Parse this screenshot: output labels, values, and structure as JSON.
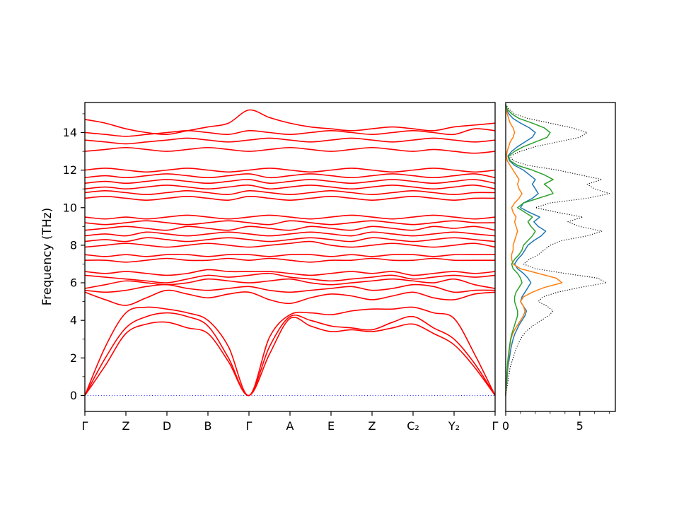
{
  "figure": {
    "background": "#ffffff"
  },
  "chart_data": {
    "type": "line",
    "title": "",
    "panels": [
      {
        "name": "band-structure",
        "ylabel": "Frequency (THz)",
        "ylim": [
          -0.85,
          15.6
        ],
        "yticks": [
          0,
          2,
          4,
          6,
          8,
          10,
          12,
          14
        ],
        "yminor": [
          1,
          3,
          5,
          7,
          9,
          11,
          13,
          15
        ],
        "kpath_labels": [
          "Γ",
          "Z",
          "D",
          "B",
          "Γ",
          "A",
          "E",
          "Z",
          "C₂",
          "Y₂",
          "Γ"
        ],
        "segments": 10,
        "line_color": "#ff0000",
        "zero_line_color": "#0000ff",
        "grid": false,
        "bands": [
          [
            0,
            1.6,
            3.3,
            3.8,
            3.9,
            3.6,
            3.3,
            1.8,
            0,
            2.2,
            4.1,
            3.7,
            3.4,
            3.5,
            3.4,
            3.6,
            3.8,
            3.3,
            2.7,
            1.5,
            0
          ],
          [
            0,
            2.0,
            3.6,
            4.2,
            4.4,
            4.2,
            3.7,
            2.0,
            0,
            2.6,
            4.2,
            4.0,
            3.7,
            3.6,
            3.5,
            3.9,
            4.2,
            3.6,
            3.0,
            1.7,
            0
          ],
          [
            0,
            2.6,
            4.4,
            4.7,
            4.6,
            4.4,
            4.0,
            2.6,
            0,
            3.1,
            4.3,
            4.4,
            4.3,
            4.5,
            4.6,
            4.6,
            4.7,
            4.4,
            4.1,
            2.2,
            0
          ],
          [
            5.5,
            5.1,
            4.8,
            5.2,
            5.6,
            5.4,
            5.2,
            5.4,
            5.5,
            5.1,
            4.9,
            5.2,
            5.4,
            5.3,
            5.1,
            5.3,
            5.5,
            5.2,
            5.1,
            5.4,
            5.5
          ],
          [
            5.6,
            5.5,
            5.6,
            5.8,
            5.9,
            5.7,
            5.6,
            5.7,
            5.8,
            5.6,
            5.5,
            5.6,
            5.7,
            5.8,
            5.6,
            5.7,
            5.9,
            5.8,
            5.5,
            5.6,
            5.6
          ],
          [
            5.7,
            5.9,
            6.1,
            6.0,
            5.9,
            6.0,
            6.2,
            6.1,
            6.0,
            6.1,
            6.2,
            6.0,
            5.9,
            6.0,
            6.1,
            6.2,
            6.1,
            6.0,
            6.2,
            5.9,
            5.7
          ],
          [
            6.4,
            6.3,
            6.2,
            6.1,
            6.0,
            6.2,
            6.4,
            6.3,
            6.4,
            6.5,
            6.3,
            6.2,
            6.1,
            6.2,
            6.3,
            6.4,
            6.2,
            6.3,
            6.4,
            6.3,
            6.4
          ],
          [
            6.6,
            6.5,
            6.6,
            6.5,
            6.4,
            6.5,
            6.7,
            6.6,
            6.6,
            6.6,
            6.5,
            6.4,
            6.5,
            6.6,
            6.5,
            6.6,
            6.4,
            6.5,
            6.6,
            6.5,
            6.6
          ],
          [
            7.2,
            7.2,
            7.1,
            7.2,
            7.3,
            7.2,
            7.2,
            7.3,
            7.2,
            7.3,
            7.2,
            7.1,
            7.2,
            7.2,
            7.3,
            7.2,
            7.2,
            7.3,
            7.2,
            7.2,
            7.2
          ],
          [
            7.5,
            7.4,
            7.5,
            7.4,
            7.5,
            7.5,
            7.4,
            7.5,
            7.5,
            7.4,
            7.5,
            7.5,
            7.4,
            7.5,
            7.4,
            7.5,
            7.5,
            7.4,
            7.5,
            7.5,
            7.5
          ],
          [
            7.9,
            8.0,
            8.1,
            8.0,
            7.9,
            8.0,
            8.1,
            8.0,
            7.9,
            8.0,
            8.1,
            8.2,
            8.0,
            7.9,
            8.0,
            8.1,
            8.0,
            7.9,
            8.0,
            8.1,
            7.9
          ],
          [
            8.2,
            8.3,
            8.2,
            8.4,
            8.3,
            8.2,
            8.3,
            8.4,
            8.3,
            8.2,
            8.3,
            8.4,
            8.3,
            8.2,
            8.4,
            8.3,
            8.2,
            8.3,
            8.4,
            8.3,
            8.2
          ],
          [
            8.5,
            8.6,
            8.5,
            8.7,
            8.6,
            8.5,
            8.6,
            8.7,
            8.6,
            8.5,
            8.6,
            8.7,
            8.6,
            8.5,
            8.7,
            8.6,
            8.5,
            8.6,
            8.7,
            8.6,
            8.5
          ],
          [
            8.8,
            8.9,
            9.0,
            8.9,
            8.8,
            9.0,
            8.9,
            8.8,
            9.0,
            8.9,
            8.8,
            9.0,
            8.9,
            8.8,
            9.0,
            8.9,
            8.8,
            9.0,
            8.9,
            9.0,
            8.8
          ],
          [
            9.2,
            9.1,
            9.2,
            9.3,
            9.2,
            9.1,
            9.2,
            9.3,
            9.2,
            9.1,
            9.3,
            9.2,
            9.1,
            9.2,
            9.3,
            9.2,
            9.1,
            9.2,
            9.3,
            9.2,
            9.2
          ],
          [
            9.5,
            9.4,
            9.5,
            9.4,
            9.5,
            9.6,
            9.5,
            9.4,
            9.5,
            9.6,
            9.5,
            9.4,
            9.5,
            9.6,
            9.5,
            9.4,
            9.5,
            9.6,
            9.5,
            9.4,
            9.5
          ],
          [
            10.5,
            10.6,
            10.5,
            10.4,
            10.5,
            10.6,
            10.5,
            10.4,
            10.6,
            10.5,
            10.4,
            10.5,
            10.6,
            10.5,
            10.4,
            10.5,
            10.6,
            10.5,
            10.4,
            10.5,
            10.5
          ],
          [
            10.8,
            10.9,
            10.8,
            10.7,
            10.8,
            10.9,
            10.8,
            10.7,
            10.9,
            10.8,
            10.7,
            10.8,
            10.9,
            10.8,
            10.7,
            10.8,
            10.9,
            10.8,
            10.7,
            10.8,
            10.8
          ],
          [
            11.0,
            11.1,
            11.0,
            11.1,
            11.2,
            11.1,
            11.0,
            11.1,
            11.2,
            11.0,
            11.1,
            11.2,
            11.1,
            11.0,
            11.1,
            11.2,
            11.1,
            11.0,
            11.1,
            11.2,
            11.0
          ],
          [
            11.3,
            11.4,
            11.3,
            11.4,
            11.5,
            11.4,
            11.3,
            11.4,
            11.5,
            11.3,
            11.4,
            11.5,
            11.4,
            11.3,
            11.4,
            11.5,
            11.4,
            11.3,
            11.4,
            11.5,
            11.3
          ],
          [
            11.6,
            11.7,
            11.6,
            11.7,
            11.8,
            11.7,
            11.6,
            11.7,
            11.8,
            11.6,
            11.7,
            11.8,
            11.7,
            11.6,
            11.7,
            11.8,
            11.7,
            11.6,
            11.7,
            11.8,
            11.6
          ],
          [
            12.0,
            12.1,
            12.0,
            11.9,
            12.0,
            12.1,
            12.0,
            11.9,
            12.0,
            12.1,
            12.0,
            11.9,
            12.0,
            12.1,
            12.0,
            11.9,
            12.0,
            12.1,
            12.0,
            11.9,
            12.0
          ],
          [
            13.0,
            13.1,
            13.2,
            13.1,
            13.0,
            13.1,
            13.2,
            13.1,
            13.0,
            13.1,
            13.2,
            13.1,
            13.0,
            13.1,
            13.2,
            13.1,
            13.0,
            13.1,
            13.0,
            12.9,
            13.0
          ],
          [
            13.6,
            13.5,
            13.4,
            13.5,
            13.6,
            13.7,
            13.6,
            13.5,
            13.6,
            13.7,
            13.6,
            13.5,
            13.6,
            13.7,
            13.6,
            13.5,
            13.6,
            13.7,
            13.6,
            13.5,
            13.6
          ],
          [
            14.0,
            13.9,
            13.8,
            13.9,
            14.0,
            14.1,
            14.0,
            13.9,
            14.1,
            14.0,
            13.9,
            14.0,
            14.1,
            14.0,
            13.9,
            14.0,
            14.1,
            14.0,
            13.9,
            14.2,
            14.1
          ],
          [
            14.7,
            14.5,
            14.2,
            14.0,
            13.9,
            14.1,
            14.3,
            14.5,
            15.2,
            14.8,
            14.5,
            14.3,
            14.2,
            14.1,
            14.2,
            14.3,
            14.2,
            14.1,
            14.3,
            14.4,
            14.5
          ]
        ]
      },
      {
        "name": "dos",
        "xlim": [
          0,
          7.4
        ],
        "xticks": [
          0,
          5
        ],
        "xminor": [
          1,
          2,
          3,
          4,
          6,
          7
        ],
        "freq_step": 0.25,
        "series": [
          {
            "name": "total-dos",
            "color": "#000000",
            "style": "dotted",
            "values": [
              0,
              0.05,
              0.1,
              0.15,
              0.2,
              0.25,
              0.3,
              0.4,
              0.5,
              0.6,
              0.7,
              0.85,
              1.0,
              1.2,
              1.5,
              1.9,
              2.4,
              2.9,
              3.2,
              2.8,
              2.2,
              2.5,
              3.5,
              5.0,
              6.8,
              6.2,
              4.0,
              2.0,
              1.2,
              1.6,
              2.2,
              2.6,
              3.0,
              3.8,
              5.5,
              6.5,
              5.0,
              4.2,
              5.2,
              3.5,
              2.0,
              3.0,
              5.5,
              7.0,
              6.0,
              5.5,
              6.5,
              5.0,
              3.5,
              1.5,
              0.5,
              0.3,
              1.0,
              2.0,
              3.5,
              5.0,
              5.5,
              4.5,
              3.0,
              1.5,
              0.6,
              0.2,
              0
            ]
          },
          {
            "name": "pdos-blue",
            "color": "#1f77b4",
            "style": "solid",
            "values": [
              0,
              0.02,
              0.05,
              0.08,
              0.1,
              0.12,
              0.15,
              0.2,
              0.25,
              0.3,
              0.35,
              0.42,
              0.5,
              0.6,
              0.75,
              0.9,
              1.1,
              1.3,
              1.4,
              1.2,
              1.0,
              1.1,
              1.3,
              1.5,
              1.7,
              1.5,
              1.2,
              0.8,
              0.6,
              0.8,
              1.1,
              1.3,
              1.5,
              1.9,
              2.4,
              2.7,
              2.2,
              1.9,
              2.3,
              1.6,
              1.0,
              1.2,
              1.8,
              2.2,
              2.0,
              1.8,
              2.0,
              1.6,
              1.2,
              0.6,
              0.25,
              0.15,
              0.4,
              0.8,
              1.3,
              1.8,
              2.0,
              1.6,
              1.0,
              0.5,
              0.2,
              0.05,
              0
            ]
          },
          {
            "name": "pdos-orange",
            "color": "#ff7f0e",
            "style": "solid",
            "values": [
              0,
              0.02,
              0.04,
              0.06,
              0.08,
              0.1,
              0.12,
              0.15,
              0.18,
              0.22,
              0.26,
              0.3,
              0.35,
              0.45,
              0.6,
              0.8,
              1.0,
              1.2,
              1.3,
              1.2,
              1.0,
              1.2,
              1.8,
              2.6,
              3.8,
              3.4,
              2.2,
              1.0,
              0.5,
              0.4,
              0.4,
              0.5,
              0.5,
              0.6,
              0.7,
              0.8,
              0.7,
              0.6,
              0.7,
              0.5,
              0.4,
              0.6,
              0.9,
              1.1,
              0.9,
              0.8,
              0.9,
              0.7,
              0.5,
              0.3,
              0.1,
              0.05,
              0.1,
              0.2,
              0.3,
              0.5,
              0.6,
              0.5,
              0.3,
              0.2,
              0.1,
              0.03,
              0
            ]
          },
          {
            "name": "pdos-green",
            "color": "#2ca02c",
            "style": "solid",
            "values": [
              0,
              0.01,
              0.03,
              0.05,
              0.07,
              0.09,
              0.11,
              0.13,
              0.16,
              0.2,
              0.24,
              0.28,
              0.33,
              0.4,
              0.5,
              0.6,
              0.7,
              0.8,
              0.8,
              0.7,
              0.6,
              0.6,
              0.7,
              0.9,
              1.1,
              1.0,
              0.8,
              0.5,
              0.4,
              0.6,
              0.9,
              1.1,
              1.2,
              1.5,
              1.8,
              2.0,
              1.7,
              1.5,
              1.8,
              1.3,
              0.8,
              1.2,
              2.2,
              3.2,
              3.0,
              2.6,
              3.2,
              2.6,
              1.8,
              0.8,
              0.3,
              0.2,
              0.6,
              1.2,
              2.0,
              2.8,
              3.0,
              2.6,
              1.8,
              0.9,
              0.4,
              0.1,
              0
            ]
          }
        ]
      }
    ]
  }
}
